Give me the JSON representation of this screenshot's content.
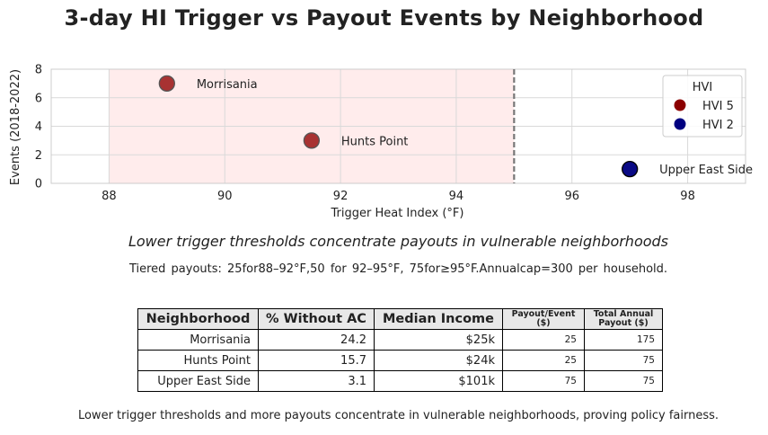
{
  "title": "3-day HI Trigger vs Payout Events by Neighborhood",
  "subtitle": "Lower trigger thresholds concentrate payouts in vulnerable neighborhoods",
  "tiered_note": "Tiered  payouts:  25for88–92°F,50  for  92–95°F,  75for≥95°F.Annualcap=300  per  household.",
  "footer": "Lower trigger thresholds and more payouts concentrate in vulnerable neighborhoods, proving policy fairness.",
  "chart_data": {
    "type": "scatter",
    "xlabel": "Trigger Heat Index (°F)",
    "ylabel": "Events (2018-2022)",
    "xlim": [
      87,
      99
    ],
    "ylim": [
      0,
      8
    ],
    "xticks": [
      88,
      90,
      92,
      94,
      96,
      98
    ],
    "yticks": [
      0,
      2,
      4,
      6,
      8
    ],
    "grid": true,
    "shaded_region": {
      "x_start": 88,
      "x_end": 95,
      "color": "#ffecec"
    },
    "vline": {
      "x": 95,
      "style": "dashed",
      "color": "#777777"
    },
    "points": [
      {
        "label": "Morrisania",
        "x": 89,
        "y": 7,
        "hvi": 5,
        "color": "#a83232"
      },
      {
        "label": "Hunts Point",
        "x": 91.5,
        "y": 3,
        "hvi": 5,
        "color": "#a83232"
      },
      {
        "label": "Upper East Side",
        "x": 97,
        "y": 1,
        "hvi": 2,
        "color": "#0a0a85"
      }
    ],
    "legend": {
      "title": "HVI",
      "placement": "top-right",
      "entries": [
        {
          "label": "HVI 5",
          "color": "#8b0000"
        },
        {
          "label": "HVI 2",
          "color": "#000080"
        }
      ]
    }
  },
  "table": {
    "headers": [
      "Neighborhood",
      "% Without AC",
      "Median Income",
      "Payout/Event ($)",
      "Total Annual Payout ($)"
    ],
    "rows": [
      [
        "Morrisania",
        "24.2",
        "$25k",
        "25",
        "175"
      ],
      [
        "Hunts Point",
        "15.7",
        "$24k",
        "25",
        "75"
      ],
      [
        "Upper East Side",
        "3.1",
        "$101k",
        "75",
        "75"
      ]
    ]
  }
}
